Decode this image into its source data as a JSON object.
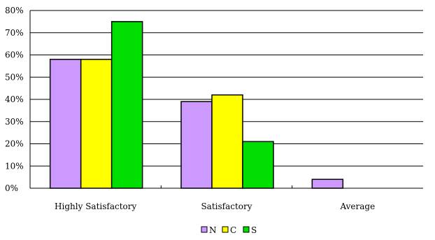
{
  "chart_data": {
    "type": "bar",
    "title": "",
    "xlabel": "",
    "ylabel": "",
    "categories": [
      "Highly Satisfactory",
      "Satisfactory",
      "Average"
    ],
    "series": [
      {
        "name": "N",
        "color": "#cc99ff",
        "values": [
          58,
          39,
          4
        ]
      },
      {
        "name": "C",
        "color": "#ffff00",
        "values": [
          58,
          42,
          0
        ]
      },
      {
        "name": "S",
        "color": "#00dd00",
        "values": [
          75,
          21,
          0
        ]
      }
    ],
    "ylim": [
      0,
      80
    ],
    "yticks": [
      "0%",
      "10%",
      "20%",
      "30%",
      "40%",
      "50%",
      "60%",
      "70%",
      "80%"
    ],
    "grid": true,
    "legend_position": "bottom"
  }
}
